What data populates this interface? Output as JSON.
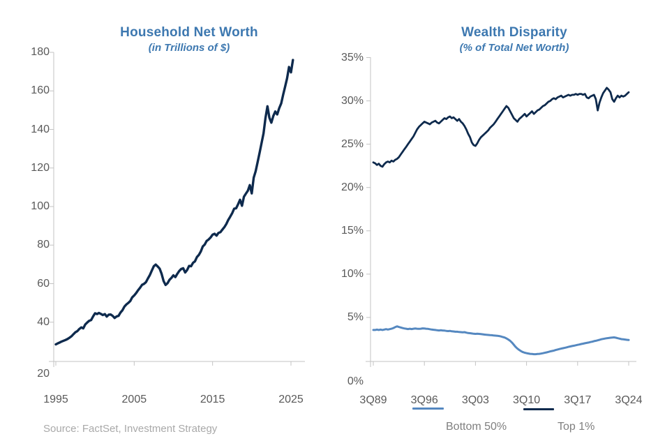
{
  "source_note": "Source: FactSet, Investment Strategy",
  "colors": {
    "title_blue": "#3d78b0",
    "navy_line": "#0e2a4d",
    "light_blue_line": "#5588c0",
    "axis_line": "#c3c3c3",
    "tick_label": "#595959",
    "legend_text": "#7f7f7f",
    "source_text": "#a9a9a9"
  },
  "chart_data": [
    {
      "id": "net-worth",
      "type": "line",
      "title": "Household Net Worth",
      "subtitle": "(in Trillions of $)",
      "grid": false,
      "ylim": [
        20,
        180
      ],
      "xlim": [
        1995,
        2025.5
      ],
      "y_tick_values": [
        20,
        40,
        60,
        80,
        100,
        120,
        140,
        160,
        180
      ],
      "y_tick_labels": [
        "20",
        "40",
        "60",
        "80",
        "100",
        "120",
        "140",
        "160",
        "180"
      ],
      "x_tick_values": [
        1995,
        2005,
        2015,
        2025
      ],
      "x_tick_labels": [
        "1995",
        "2005",
        "2015",
        "2025"
      ],
      "series": [
        {
          "name": "Household Net Worth ($T)",
          "color": "#0e2a4d",
          "stroke_width": 3.4,
          "start_year": 1995.0,
          "interval_years": 0.25,
          "values": [
            28.5,
            29.0,
            29.5,
            30.0,
            30.4,
            30.8,
            31.3,
            32.0,
            32.7,
            33.8,
            34.8,
            35.4,
            36.5,
            37.3,
            36.8,
            38.8,
            39.8,
            40.7,
            41.1,
            43.0,
            44.6,
            44.2,
            44.8,
            44.3,
            43.7,
            44.2,
            42.9,
            43.9,
            44.0,
            43.3,
            42.2,
            43.0,
            43.3,
            45.0,
            46.2,
            48.1,
            49.2,
            50.0,
            51.0,
            52.9,
            53.9,
            55.1,
            56.6,
            57.9,
            59.4,
            59.9,
            60.8,
            62.7,
            64.5,
            66.8,
            69.0,
            69.9,
            68.9,
            67.8,
            65.1,
            61.3,
            59.3,
            60.2,
            62.0,
            63.0,
            64.3,
            63.4,
            65.1,
            66.6,
            67.6,
            68.0,
            65.8,
            67.1,
            69.2,
            69.0,
            70.8,
            71.6,
            73.8,
            74.9,
            76.7,
            79.3,
            80.3,
            82.2,
            82.9,
            84.0,
            85.4,
            85.9,
            84.9,
            86.3,
            86.7,
            88.0,
            89.3,
            90.9,
            93.0,
            94.7,
            96.6,
            98.9,
            99.1,
            101.2,
            103.5,
            100.4,
            105.1,
            106.7,
            108.2,
            111.1,
            106.8,
            115.0,
            118.3,
            123.2,
            128.0,
            133.0,
            138.0,
            146.0,
            152.0,
            146.0,
            143.5,
            147.0,
            149.3,
            147.8,
            151.0,
            153.5,
            158.0,
            162.2,
            166.5,
            172.4,
            169.6,
            176.0
          ]
        }
      ]
    },
    {
      "id": "wealth-disparity",
      "type": "line",
      "title": "Wealth Disparity",
      "subtitle": "(% of Total Net Worth)",
      "grid": false,
      "ylim": [
        0,
        35
      ],
      "xlim": [
        1989.75,
        2025.0
      ],
      "y_tick_values": [
        0,
        5,
        10,
        15,
        20,
        25,
        30,
        35
      ],
      "y_tick_labels": [
        "0%",
        "5%",
        "10%",
        "15%",
        "20%",
        "25%",
        "30%",
        "35%"
      ],
      "x_tick_values": [
        1989.75,
        1996.75,
        2003.75,
        2010.75,
        2017.75,
        2024.75
      ],
      "x_tick_labels": [
        "3Q89",
        "3Q96",
        "3Q03",
        "3Q10",
        "3Q17",
        "3Q24"
      ],
      "legend": {
        "position": "bottom",
        "items": [
          "Bottom 50%",
          "Top 1%"
        ]
      },
      "series": [
        {
          "name": "Bottom 50%",
          "color": "#5588c0",
          "stroke_width": 3.0,
          "start_year": 1989.75,
          "interval_years": 0.25,
          "values": [
            3.55,
            3.55,
            3.6,
            3.55,
            3.6,
            3.55,
            3.6,
            3.65,
            3.6,
            3.65,
            3.7,
            3.78,
            3.88,
            3.97,
            3.9,
            3.84,
            3.78,
            3.73,
            3.7,
            3.66,
            3.7,
            3.66,
            3.7,
            3.72,
            3.7,
            3.68,
            3.7,
            3.74,
            3.72,
            3.7,
            3.68,
            3.64,
            3.6,
            3.58,
            3.55,
            3.52,
            3.5,
            3.52,
            3.5,
            3.48,
            3.45,
            3.42,
            3.45,
            3.4,
            3.38,
            3.35,
            3.35,
            3.32,
            3.3,
            3.28,
            3.3,
            3.25,
            3.2,
            3.18,
            3.15,
            3.12,
            3.1,
            3.12,
            3.1,
            3.08,
            3.05,
            3.02,
            3.0,
            2.98,
            2.96,
            2.95,
            2.92,
            2.9,
            2.88,
            2.85,
            2.8,
            2.74,
            2.68,
            2.58,
            2.45,
            2.3,
            2.1,
            1.85,
            1.6,
            1.4,
            1.25,
            1.1,
            1.0,
            0.93,
            0.88,
            0.84,
            0.8,
            0.78,
            0.76,
            0.76,
            0.78,
            0.8,
            0.83,
            0.87,
            0.92,
            0.97,
            1.02,
            1.08,
            1.13,
            1.18,
            1.24,
            1.3,
            1.35,
            1.4,
            1.45,
            1.5,
            1.55,
            1.6,
            1.65,
            1.7,
            1.74,
            1.79,
            1.84,
            1.88,
            1.93,
            1.97,
            2.02,
            2.06,
            2.1,
            2.16,
            2.2,
            2.26,
            2.3,
            2.36,
            2.42,
            2.48,
            2.52,
            2.56,
            2.6,
            2.63,
            2.66,
            2.68,
            2.7,
            2.66,
            2.6,
            2.55,
            2.5,
            2.47,
            2.45,
            2.42,
            2.4
          ]
        },
        {
          "name": "Top 1%",
          "color": "#0e2a4d",
          "stroke_width": 2.8,
          "start_year": 1989.75,
          "interval_years": 0.25,
          "values": [
            22.9,
            22.8,
            22.6,
            22.75,
            22.5,
            22.4,
            22.7,
            22.9,
            23.0,
            22.9,
            23.1,
            23.0,
            23.2,
            23.3,
            23.5,
            23.8,
            24.1,
            24.4,
            24.7,
            25.0,
            25.3,
            25.6,
            25.9,
            26.3,
            26.7,
            27.0,
            27.2,
            27.4,
            27.6,
            27.5,
            27.4,
            27.3,
            27.5,
            27.6,
            27.7,
            27.5,
            27.4,
            27.6,
            27.8,
            28.0,
            27.9,
            28.1,
            28.2,
            28.0,
            28.1,
            27.9,
            27.7,
            27.9,
            27.6,
            27.4,
            27.1,
            26.7,
            26.2,
            25.8,
            25.2,
            24.9,
            24.8,
            25.1,
            25.5,
            25.8,
            26.0,
            26.2,
            26.4,
            26.6,
            26.9,
            27.1,
            27.3,
            27.6,
            27.9,
            28.2,
            28.5,
            28.8,
            29.1,
            29.4,
            29.2,
            28.8,
            28.4,
            28.0,
            27.8,
            27.6,
            27.9,
            28.1,
            28.3,
            28.5,
            28.2,
            28.4,
            28.6,
            28.8,
            28.5,
            28.7,
            28.9,
            29.0,
            29.2,
            29.4,
            29.5,
            29.7,
            29.9,
            30.0,
            30.2,
            30.3,
            30.2,
            30.4,
            30.5,
            30.6,
            30.4,
            30.5,
            30.6,
            30.7,
            30.6,
            30.7,
            30.7,
            30.8,
            30.7,
            30.8,
            30.8,
            30.7,
            30.8,
            30.4,
            30.3,
            30.5,
            30.6,
            30.7,
            30.2,
            28.9,
            29.8,
            30.4,
            30.9,
            31.2,
            31.5,
            31.3,
            31.0,
            30.2,
            29.9,
            30.3,
            30.6,
            30.4,
            30.6,
            30.5,
            30.6,
            30.8,
            31.0
          ]
        }
      ]
    }
  ]
}
